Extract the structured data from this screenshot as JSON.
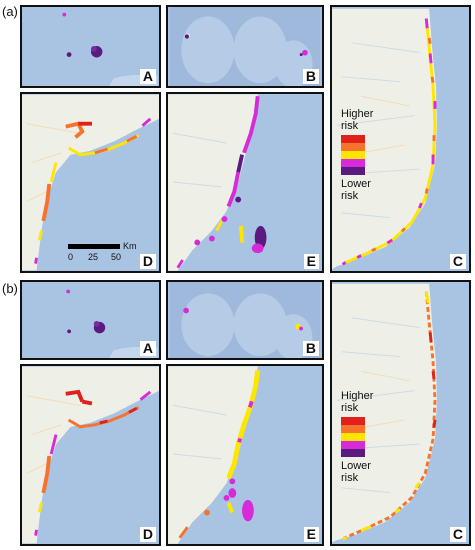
{
  "rows": [
    {
      "label": "(a)",
      "panels": {
        "A": "A",
        "B": "B",
        "C": "C",
        "D": "D",
        "E": "E"
      },
      "legend": {
        "higher": "Higher\nrisk",
        "lower": "Lower\nrisk"
      },
      "scale": {
        "unit": "Km",
        "ticks": [
          "0",
          "25",
          "50"
        ]
      }
    },
    {
      "label": "(b)",
      "panels": {
        "A": "A",
        "B": "B",
        "C": "C",
        "D": "D",
        "E": "E"
      },
      "legend": {
        "higher": "Higher\nrisk",
        "lower": "Lower\nrisk"
      }
    }
  ],
  "risk_colors": [
    "#e0201b",
    "#f5732c",
    "#ffe600",
    "#d82bd8",
    "#5b1a80"
  ],
  "colors": {
    "ocean": "#a9c3e3",
    "land": "#eef0e7",
    "frame": "#111111"
  }
}
